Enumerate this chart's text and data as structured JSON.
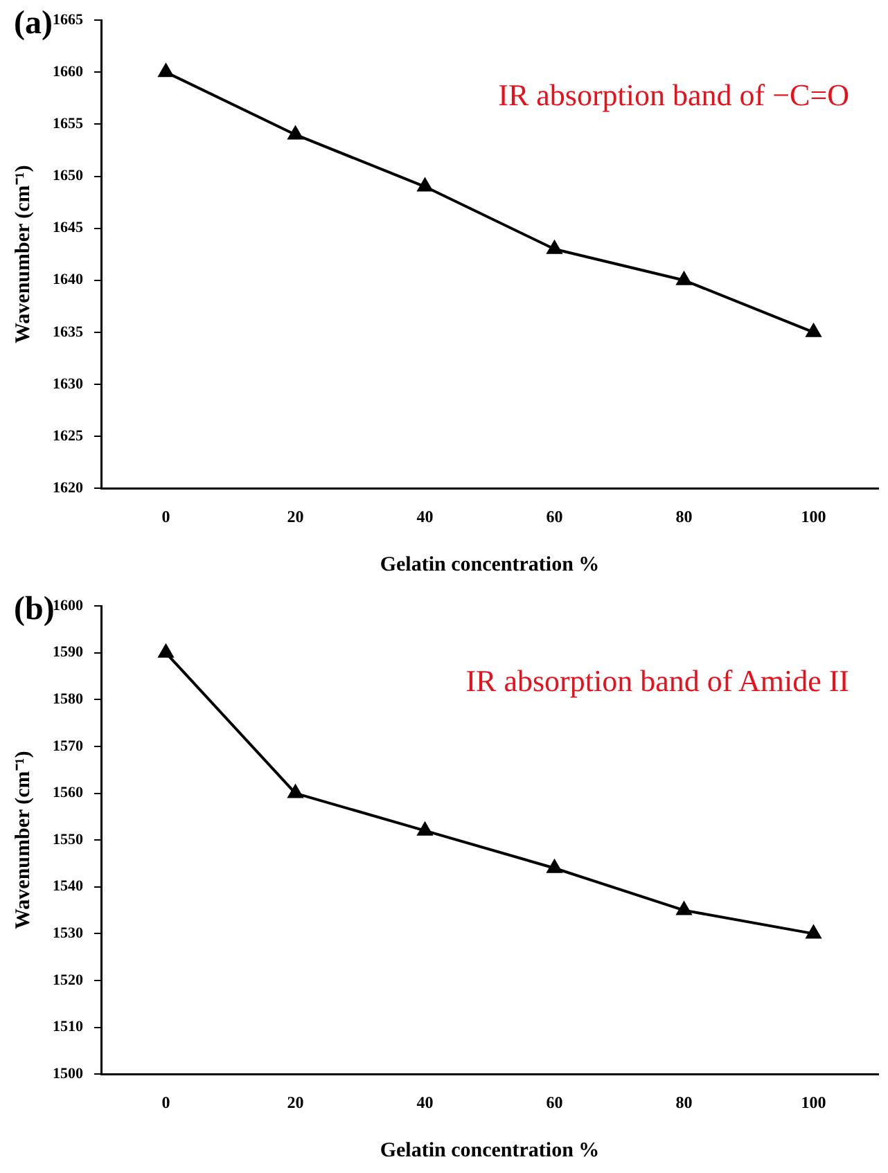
{
  "chart_data": [
    {
      "type": "line",
      "title": "(a)",
      "xlabel": "Gelatin concentration %",
      "ylabel": "Wavenumber (cm⁻¹)",
      "annotations": [
        "IR absorption band of −C=O"
      ],
      "categories": [
        "0",
        "20",
        "40",
        "60",
        "80",
        "100"
      ],
      "values": [
        1660,
        1654,
        1649,
        1643,
        1640,
        1635
      ],
      "color": "#000000",
      "ylim": [
        1620,
        1665
      ],
      "yticks": [
        1620,
        1625,
        1630,
        1635,
        1640,
        1645,
        1650,
        1655,
        1660,
        1665
      ],
      "marker": "triangle",
      "grid": false,
      "legend": false
    },
    {
      "type": "line",
      "title": "(b)",
      "xlabel": "Gelatin concentration %",
      "ylabel": "Wavenumber (cm⁻¹)",
      "annotations": [
        "IR absorption band of Amide II"
      ],
      "categories": [
        "0",
        "20",
        "40",
        "60",
        "80",
        "100"
      ],
      "values": [
        1590,
        1560,
        1552,
        1544,
        1535,
        1530
      ],
      "color": "#000000",
      "ylim": [
        1500,
        1600
      ],
      "yticks": [
        1500,
        1510,
        1520,
        1530,
        1540,
        1550,
        1560,
        1570,
        1580,
        1590,
        1600
      ],
      "marker": "triangle",
      "grid": false,
      "legend": false
    }
  ]
}
